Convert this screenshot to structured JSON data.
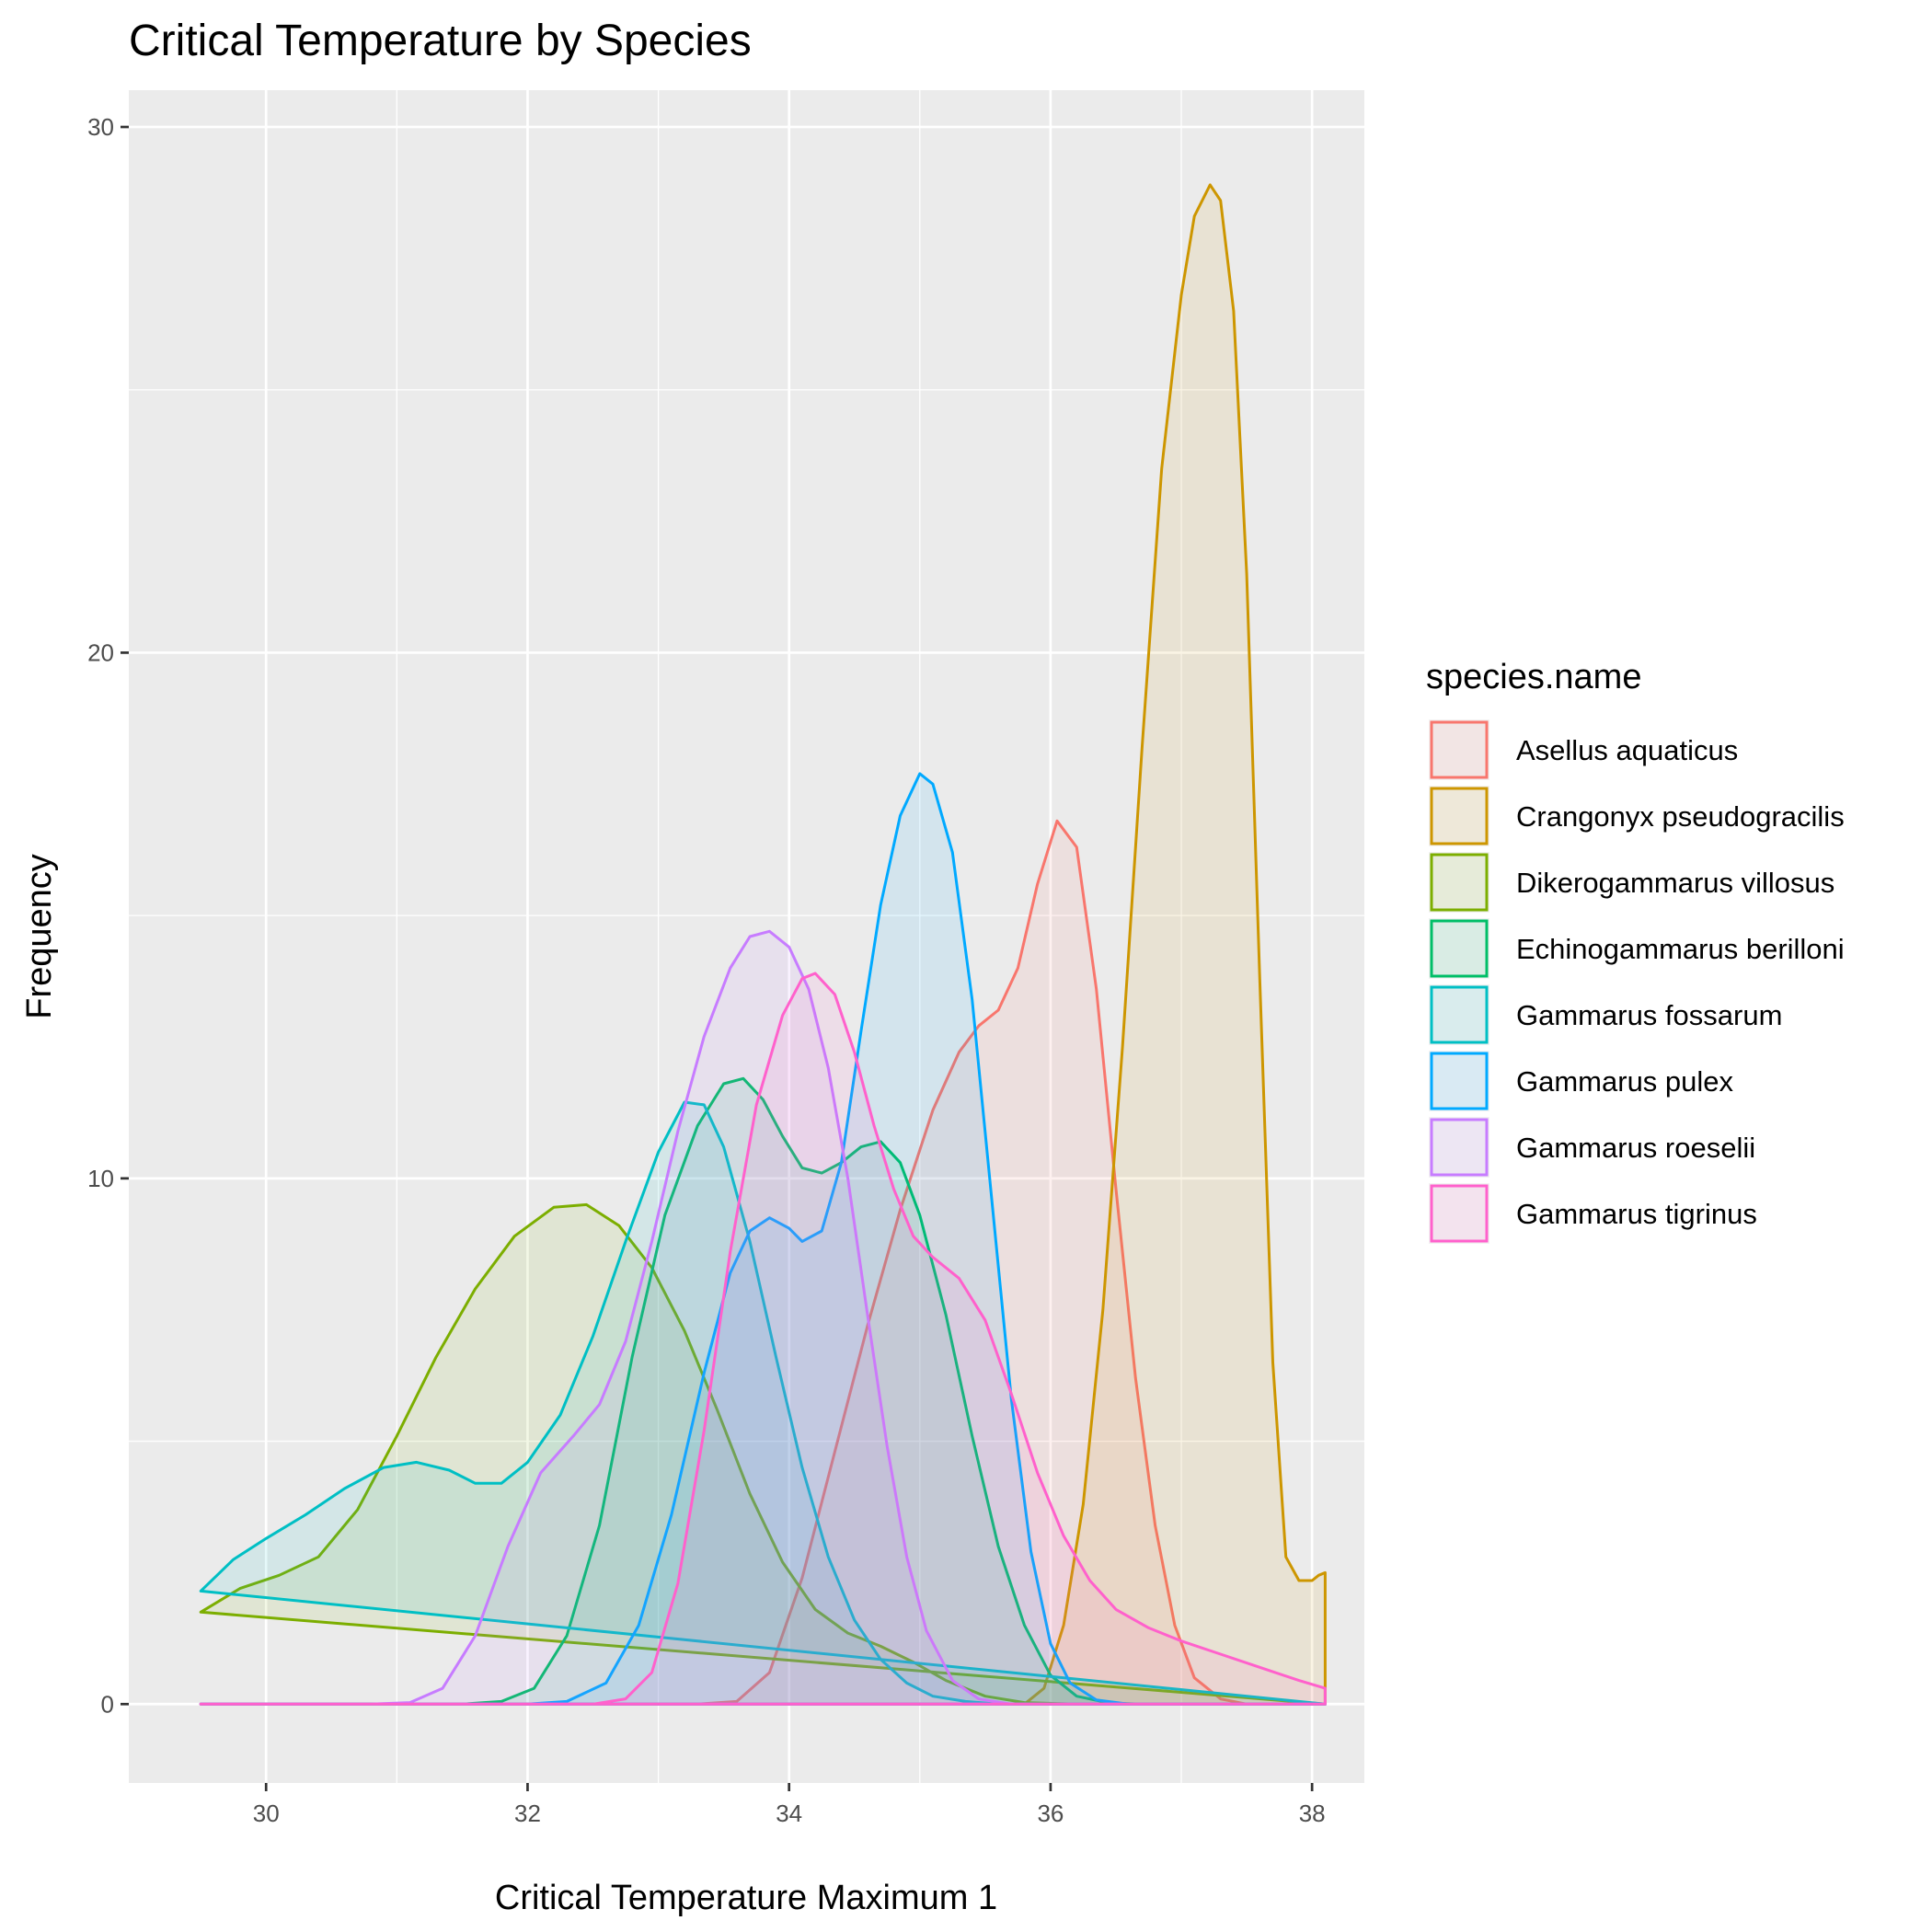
{
  "chart_data": {
    "type": "area",
    "subtype": "density",
    "title": "Critical Temperature by Species",
    "xlabel": "Critical Temperature Maximum 1",
    "ylabel": "Frequency",
    "xlim": [
      28.95,
      38.4
    ],
    "ylim": [
      -1.5,
      30.7
    ],
    "x_ticks": [
      30,
      32,
      34,
      36,
      38
    ],
    "y_ticks": [
      0,
      10,
      20,
      30
    ],
    "grid": true,
    "legend_title": "species.name",
    "legend_position": "right",
    "series": [
      {
        "name": "Asellus aquaticus",
        "color": "#F8766D",
        "points": [
          [
            29.5,
            0
          ],
          [
            33.3,
            0
          ],
          [
            33.6,
            0.05
          ],
          [
            33.85,
            0.6
          ],
          [
            34.1,
            2.4
          ],
          [
            34.35,
            4.8
          ],
          [
            34.6,
            7.2
          ],
          [
            34.85,
            9.4
          ],
          [
            35.1,
            11.3
          ],
          [
            35.3,
            12.4
          ],
          [
            35.45,
            12.9
          ],
          [
            35.6,
            13.2
          ],
          [
            35.75,
            14
          ],
          [
            35.9,
            15.6
          ],
          [
            36.05,
            16.8
          ],
          [
            36.2,
            16.3
          ],
          [
            36.35,
            13.6
          ],
          [
            36.5,
            9.8
          ],
          [
            36.65,
            6.2
          ],
          [
            36.8,
            3.4
          ],
          [
            36.95,
            1.5
          ],
          [
            37.1,
            0.5
          ],
          [
            37.3,
            0.1
          ],
          [
            37.5,
            0
          ],
          [
            38.1,
            0
          ]
        ]
      },
      {
        "name": "Crangonyx pseudogracilis",
        "color": "#CD9600",
        "points": [
          [
            29.5,
            0
          ],
          [
            35.8,
            0
          ],
          [
            35.95,
            0.3
          ],
          [
            36.1,
            1.5
          ],
          [
            36.25,
            3.8
          ],
          [
            36.4,
            7.5
          ],
          [
            36.55,
            12.5
          ],
          [
            36.7,
            18.2
          ],
          [
            36.85,
            23.5
          ],
          [
            37,
            26.8
          ],
          [
            37.1,
            28.3
          ],
          [
            37.22,
            28.9
          ],
          [
            37.3,
            28.6
          ],
          [
            37.4,
            26.5
          ],
          [
            37.5,
            21.5
          ],
          [
            37.6,
            13.8
          ],
          [
            37.7,
            6.5
          ],
          [
            37.8,
            2.8
          ],
          [
            37.9,
            2.35
          ],
          [
            38,
            2.35
          ],
          [
            38.05,
            2.45
          ],
          [
            38.1,
            2.5
          ],
          [
            38.1,
            0
          ]
        ]
      },
      {
        "name": "Dikerogammarus villosus",
        "color": "#7CAE00",
        "points": [
          [
            29.5,
            1.75
          ],
          [
            29.8,
            2.2
          ],
          [
            30.1,
            2.45
          ],
          [
            30.4,
            2.8
          ],
          [
            30.7,
            3.7
          ],
          [
            31,
            5.1
          ],
          [
            31.3,
            6.6
          ],
          [
            31.6,
            7.9
          ],
          [
            31.9,
            8.9
          ],
          [
            32.2,
            9.45
          ],
          [
            32.45,
            9.5
          ],
          [
            32.7,
            9.1
          ],
          [
            32.95,
            8.3
          ],
          [
            33.2,
            7.1
          ],
          [
            33.45,
            5.6
          ],
          [
            33.7,
            4
          ],
          [
            33.95,
            2.7
          ],
          [
            34.2,
            1.8
          ],
          [
            34.45,
            1.35
          ],
          [
            34.7,
            1.1
          ],
          [
            34.95,
            0.8
          ],
          [
            35.2,
            0.45
          ],
          [
            35.5,
            0.15
          ],
          [
            35.8,
            0.03
          ],
          [
            36.2,
            0
          ],
          [
            38.1,
            0
          ]
        ]
      },
      {
        "name": "Echinogammarus berilloni",
        "color": "#00BE67",
        "points": [
          [
            29.5,
            0
          ],
          [
            31.5,
            0
          ],
          [
            31.8,
            0.05
          ],
          [
            32.05,
            0.3
          ],
          [
            32.3,
            1.3
          ],
          [
            32.55,
            3.4
          ],
          [
            32.8,
            6.6
          ],
          [
            33.05,
            9.3
          ],
          [
            33.3,
            11
          ],
          [
            33.5,
            11.8
          ],
          [
            33.65,
            11.9
          ],
          [
            33.8,
            11.5
          ],
          [
            33.95,
            10.8
          ],
          [
            34.1,
            10.2
          ],
          [
            34.25,
            10.1
          ],
          [
            34.4,
            10.3
          ],
          [
            34.55,
            10.6
          ],
          [
            34.7,
            10.7
          ],
          [
            34.85,
            10.3
          ],
          [
            35,
            9.3
          ],
          [
            35.2,
            7.4
          ],
          [
            35.4,
            5.1
          ],
          [
            35.6,
            3
          ],
          [
            35.8,
            1.5
          ],
          [
            36,
            0.55
          ],
          [
            36.2,
            0.15
          ],
          [
            36.45,
            0.02
          ],
          [
            36.7,
            0
          ],
          [
            38.1,
            0
          ]
        ]
      },
      {
        "name": "Gammarus fossarum",
        "color": "#00BFC4",
        "points": [
          [
            29.5,
            2.15
          ],
          [
            29.75,
            2.75
          ],
          [
            30,
            3.15
          ],
          [
            30.3,
            3.6
          ],
          [
            30.6,
            4.1
          ],
          [
            30.9,
            4.5
          ],
          [
            31.15,
            4.6
          ],
          [
            31.4,
            4.45
          ],
          [
            31.6,
            4.2
          ],
          [
            31.8,
            4.2
          ],
          [
            32,
            4.6
          ],
          [
            32.25,
            5.5
          ],
          [
            32.5,
            7
          ],
          [
            32.75,
            8.8
          ],
          [
            33,
            10.5
          ],
          [
            33.2,
            11.45
          ],
          [
            33.35,
            11.4
          ],
          [
            33.5,
            10.6
          ],
          [
            33.7,
            8.8
          ],
          [
            33.9,
            6.6
          ],
          [
            34.1,
            4.5
          ],
          [
            34.3,
            2.8
          ],
          [
            34.5,
            1.6
          ],
          [
            34.7,
            0.85
          ],
          [
            34.9,
            0.4
          ],
          [
            35.1,
            0.15
          ],
          [
            35.35,
            0.05
          ],
          [
            35.6,
            0
          ],
          [
            38.1,
            0
          ]
        ]
      },
      {
        "name": "Gammarus pulex",
        "color": "#00A9FF",
        "points": [
          [
            29.5,
            0
          ],
          [
            32,
            0
          ],
          [
            32.3,
            0.05
          ],
          [
            32.6,
            0.4
          ],
          [
            32.85,
            1.5
          ],
          [
            33.1,
            3.6
          ],
          [
            33.35,
            6.3
          ],
          [
            33.55,
            8.2
          ],
          [
            33.7,
            9
          ],
          [
            33.85,
            9.25
          ],
          [
            34,
            9.05
          ],
          [
            34.1,
            8.8
          ],
          [
            34.25,
            9
          ],
          [
            34.4,
            10.3
          ],
          [
            34.55,
            12.8
          ],
          [
            34.7,
            15.2
          ],
          [
            34.85,
            16.9
          ],
          [
            35,
            17.7
          ],
          [
            35.1,
            17.5
          ],
          [
            35.25,
            16.2
          ],
          [
            35.4,
            13.4
          ],
          [
            35.55,
            9.6
          ],
          [
            35.7,
            5.8
          ],
          [
            35.85,
            2.9
          ],
          [
            36,
            1.15
          ],
          [
            36.15,
            0.4
          ],
          [
            36.35,
            0.08
          ],
          [
            36.6,
            0
          ],
          [
            38.1,
            0
          ]
        ]
      },
      {
        "name": "Gammarus roeselii",
        "color": "#C77CFF",
        "points": [
          [
            29.5,
            0
          ],
          [
            30.8,
            0
          ],
          [
            31.1,
            0.03
          ],
          [
            31.35,
            0.3
          ],
          [
            31.6,
            1.3
          ],
          [
            31.85,
            3
          ],
          [
            32.1,
            4.4
          ],
          [
            32.35,
            5.1
          ],
          [
            32.55,
            5.7
          ],
          [
            32.75,
            6.9
          ],
          [
            32.95,
            8.8
          ],
          [
            33.15,
            10.9
          ],
          [
            33.35,
            12.7
          ],
          [
            33.55,
            14
          ],
          [
            33.7,
            14.6
          ],
          [
            33.85,
            14.7
          ],
          [
            34,
            14.4
          ],
          [
            34.15,
            13.6
          ],
          [
            34.3,
            12.1
          ],
          [
            34.45,
            10
          ],
          [
            34.6,
            7.4
          ],
          [
            34.75,
            4.9
          ],
          [
            34.9,
            2.8
          ],
          [
            35.05,
            1.4
          ],
          [
            35.25,
            0.45
          ],
          [
            35.45,
            0.1
          ],
          [
            35.7,
            0
          ],
          [
            38.1,
            0
          ]
        ]
      },
      {
        "name": "Gammarus tigrinus",
        "color": "#FF61CC",
        "points": [
          [
            29.5,
            0
          ],
          [
            32.5,
            0
          ],
          [
            32.75,
            0.1
          ],
          [
            32.95,
            0.6
          ],
          [
            33.15,
            2.3
          ],
          [
            33.35,
            5.2
          ],
          [
            33.55,
            8.6
          ],
          [
            33.75,
            11.4
          ],
          [
            33.95,
            13.1
          ],
          [
            34.1,
            13.8
          ],
          [
            34.2,
            13.9
          ],
          [
            34.35,
            13.5
          ],
          [
            34.5,
            12.4
          ],
          [
            34.65,
            11
          ],
          [
            34.8,
            9.8
          ],
          [
            34.95,
            8.9
          ],
          [
            35.1,
            8.5
          ],
          [
            35.3,
            8.1
          ],
          [
            35.5,
            7.3
          ],
          [
            35.7,
            5.9
          ],
          [
            35.9,
            4.4
          ],
          [
            36.1,
            3.2
          ],
          [
            36.3,
            2.35
          ],
          [
            36.5,
            1.8
          ],
          [
            36.75,
            1.45
          ],
          [
            37,
            1.2
          ],
          [
            37.3,
            0.95
          ],
          [
            37.6,
            0.7
          ],
          [
            37.9,
            0.45
          ],
          [
            38.1,
            0.3
          ],
          [
            38.1,
            0
          ]
        ]
      }
    ]
  }
}
